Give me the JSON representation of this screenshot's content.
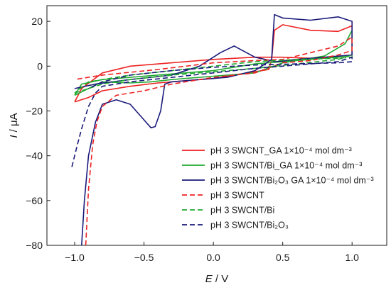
{
  "chart_data": {
    "type": "line",
    "title": "",
    "xlabel_var": "E",
    "xlabel_unit": " / V",
    "ylabel_var": "I",
    "ylabel_unit": " / μA",
    "xlim": [
      -1.2,
      1.25
    ],
    "ylim": [
      -80,
      27
    ],
    "x_ticks": [
      -1.0,
      -0.5,
      0.0,
      0.5,
      1.0
    ],
    "x_tick_labels": [
      "−1.0",
      "−0.5",
      "0.0",
      "0.5",
      "1.0"
    ],
    "y_ticks": [
      20,
      0,
      -20,
      -40,
      -60,
      -80
    ],
    "y_tick_labels": [
      "20",
      "0",
      "−20",
      "−40",
      "−60",
      "−80"
    ],
    "grid": false,
    "legend_position": "right",
    "series": [
      {
        "name": "pH 3 SWCNT_GA 1×10⁻⁴ mol dm⁻³",
        "color": "#ee2222",
        "dash": "solid",
        "x": [
          -1.0,
          -0.9,
          -0.8,
          -0.6,
          -0.4,
          -0.2,
          0.0,
          0.2,
          0.4,
          0.42,
          0.44,
          0.5,
          0.7,
          0.9,
          1.0,
          1.0,
          0.9,
          0.7,
          0.5,
          0.3,
          0.0,
          -0.3,
          -0.6,
          -0.8,
          -0.95,
          -1.0
        ],
        "y": [
          -16,
          -14,
          -11,
          -9,
          -7.5,
          -6.5,
          -5.5,
          -3.5,
          -1.5,
          3,
          16,
          18.5,
          16,
          15.5,
          18,
          5,
          4,
          3.5,
          4,
          4,
          3,
          1.5,
          0,
          -3,
          -10,
          -16
        ]
      },
      {
        "name": "pH 3 SWCNT/Bi_GA 1×10⁻⁴ mol dm⁻³",
        "color": "#22aa33",
        "dash": "solid",
        "x": [
          -1.0,
          -0.9,
          -0.8,
          -0.6,
          -0.45,
          -0.3,
          0.0,
          0.3,
          0.5,
          0.8,
          0.95,
          1.0,
          1.0,
          0.9,
          0.7,
          0.5,
          0.3,
          0.0,
          -0.3,
          -0.6,
          -0.8,
          -0.95,
          -1.0
        ],
        "y": [
          -13,
          -10,
          -7,
          -7.5,
          -7,
          -6,
          -4.5,
          -3,
          1.5,
          4.5,
          10,
          16,
          5,
          4,
          3,
          2,
          1,
          -2,
          -3.5,
          -5,
          -6,
          -8,
          -13
        ]
      },
      {
        "name": "pH 3 SWCNT/Bi₂O₃ GA 1×10⁻⁴ mol dm⁻³",
        "color": "#1a1a7a",
        "dash": "solid",
        "x": [
          -0.95,
          -0.93,
          -0.9,
          -0.85,
          -0.8,
          -0.7,
          -0.6,
          -0.5,
          -0.45,
          -0.42,
          -0.38,
          -0.35,
          -0.3,
          -0.1,
          0.1,
          0.3,
          0.42,
          0.44,
          0.5,
          0.7,
          0.9,
          1.0,
          1.0,
          0.8,
          0.6,
          0.45,
          0.3,
          0.15,
          0.05,
          -0.1,
          -0.3,
          -0.6,
          -0.85,
          -1.0
        ],
        "y": [
          -80,
          -60,
          -40,
          -25,
          -17,
          -15,
          -17,
          -24,
          -27.5,
          -27,
          -20,
          -8,
          -7,
          -6,
          -5,
          -2,
          3,
          23,
          21.5,
          20.5,
          22,
          20,
          5,
          4,
          3,
          2,
          4,
          9,
          6,
          0,
          -4,
          -6,
          -8,
          -10
        ]
      },
      {
        "name": "pH 3 SWCNT",
        "color": "#ee2222",
        "dash": "dashed",
        "x": [
          -0.92,
          -0.9,
          -0.87,
          -0.84,
          -0.8,
          -0.7,
          -0.5,
          -0.3,
          0.0,
          0.3,
          0.5,
          0.7,
          0.9,
          1.0,
          1.0,
          0.9,
          0.7,
          0.5,
          0.3,
          0.0,
          -0.4,
          -0.8,
          -1.0
        ],
        "y": [
          -80,
          -55,
          -35,
          -25,
          -18,
          -13,
          -11,
          -8,
          -5,
          -3,
          1.5,
          2.5,
          5,
          7,
          13,
          9,
          6,
          3,
          2.5,
          1.5,
          -1.5,
          -4,
          -6
        ]
      },
      {
        "name": "pH 3 SWCNT/Bi",
        "color": "#22aa33",
        "dash": "dashed",
        "x": [
          -1.0,
          -0.9,
          -0.8,
          -0.6,
          -0.3,
          0.0,
          0.3,
          0.6,
          0.9,
          1.0,
          1.0,
          0.9,
          0.6,
          0.3,
          0.0,
          -0.3,
          -0.6,
          -0.9,
          -1.0
        ],
        "y": [
          -12,
          -10,
          -8,
          -6,
          -4,
          -2.5,
          -1,
          1,
          3,
          5,
          4,
          3.5,
          3,
          2,
          0,
          -2,
          -4,
          -7,
          -12
        ]
      },
      {
        "name": "pH 3 SWCNT/Bi₂O₃",
        "color": "#1a1a7a",
        "dash": "dashed",
        "x": [
          -1.02,
          -0.98,
          -0.95,
          -0.9,
          -0.85,
          -0.8,
          -0.6,
          -0.3,
          0.0,
          0.3,
          0.6,
          0.9,
          1.0,
          1.0,
          0.9,
          0.6,
          0.3,
          0.0,
          -0.3,
          -0.6,
          -0.8,
          -0.9
        ],
        "y": [
          -45,
          -35,
          -28,
          -18,
          -12,
          -9,
          -7,
          -5,
          -3,
          -1,
          0.5,
          2,
          4,
          2,
          1.5,
          1,
          0.5,
          -0.5,
          -2,
          -4,
          -7,
          -10
        ]
      }
    ]
  }
}
